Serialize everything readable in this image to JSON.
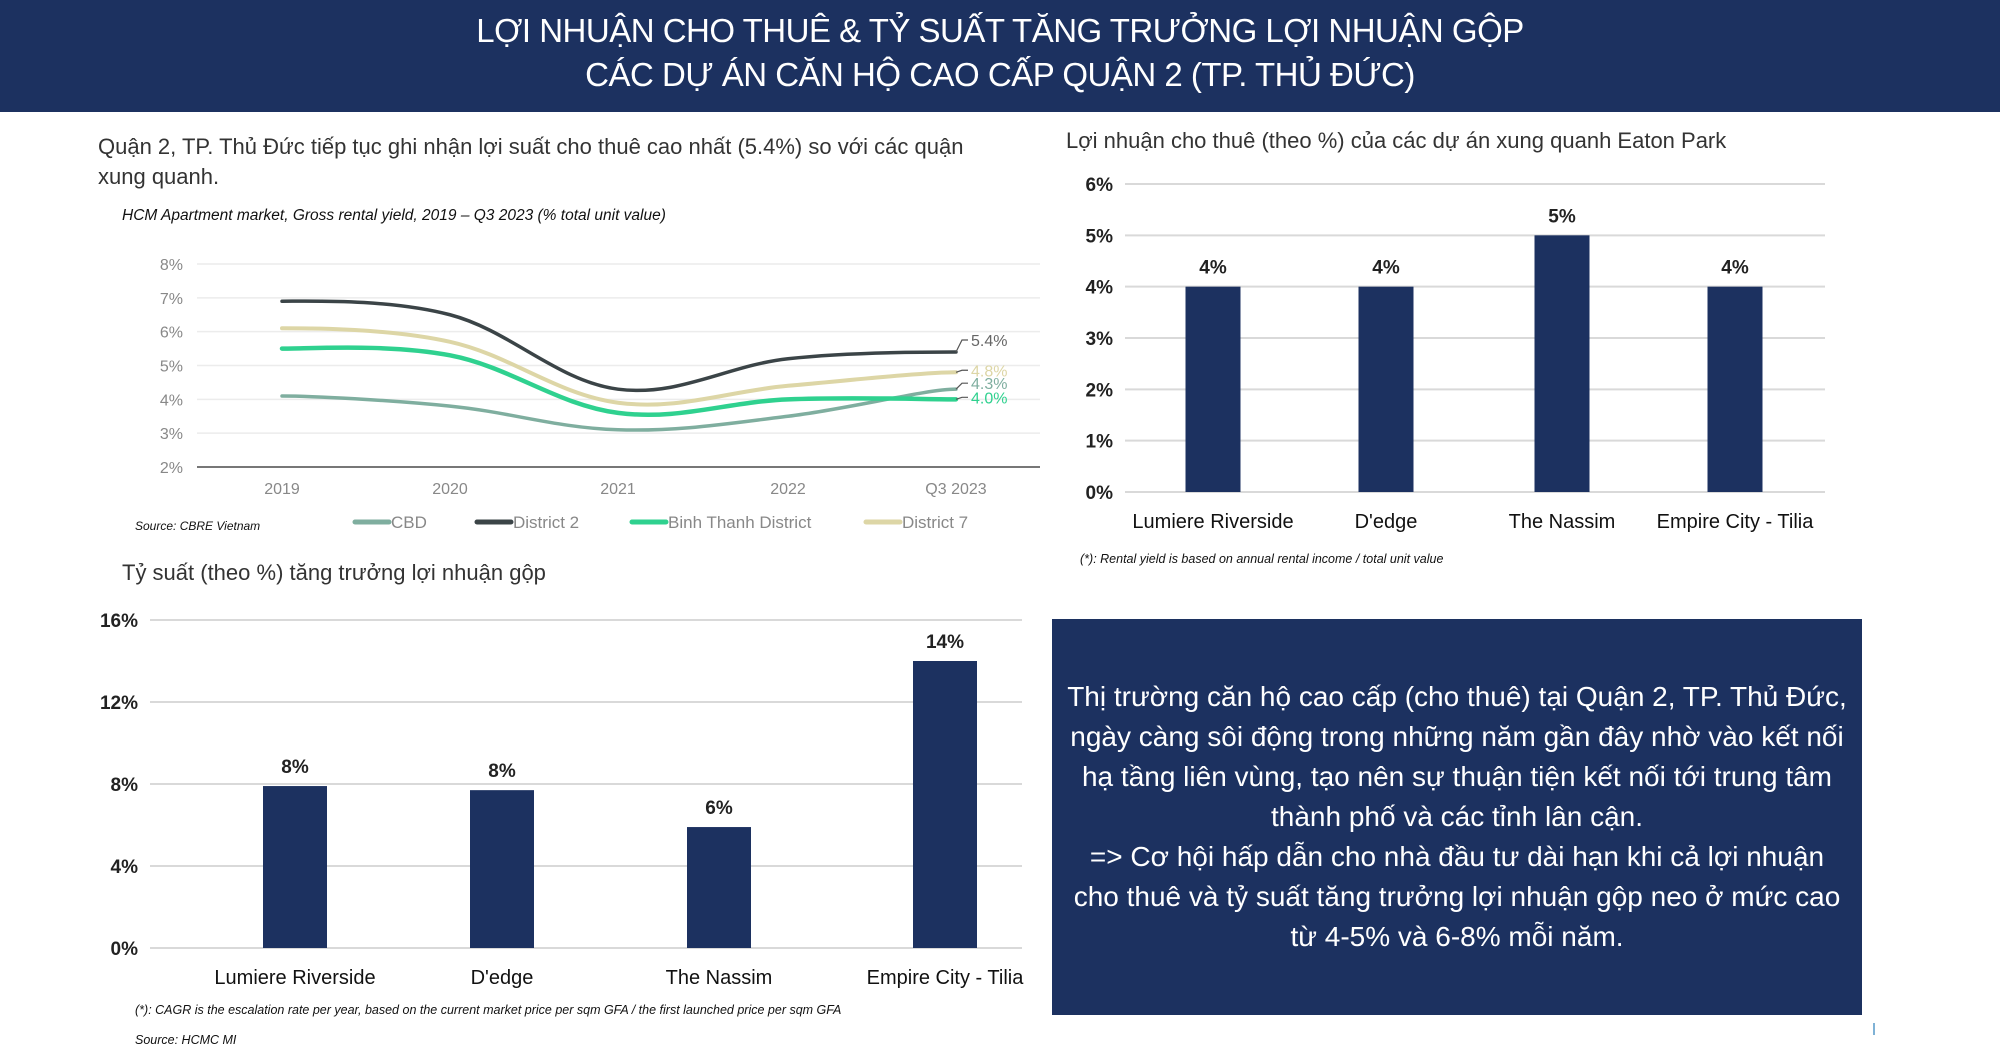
{
  "header": {
    "title_line1": "LỢI NHUẬN CHO THUÊ & TỶ SUẤT TĂNG TRƯỞNG LỢI NHUẬN GỘP",
    "title_line2": "CÁC DỰ ÁN CĂN HỘ CAO CẤP QUẬN 2 (TP. THỦ ĐỨC)"
  },
  "left_top": {
    "lead_text": "Quận 2, TP. Thủ Đức tiếp tục ghi nhận lợi suất cho thuê cao nhất (5.4%) so với các quận xung quanh.",
    "source": "Source: CBRE Vietnam"
  },
  "right_top": {
    "section_title": "Lợi nhuận cho thuê (theo %) của các dự án xung quanh Eaton Park",
    "note": "(*): Rental yield is based on annual rental income / total unit value"
  },
  "left_bottom": {
    "section_title": "Tỷ suất (theo %) tăng trưởng lợi nhuận gộp",
    "note": "(*): CAGR is the escalation rate per year, based on the current market price per sqm GFA / the first launched price per sqm GFA",
    "source": "Source: HCMC MI"
  },
  "callout": {
    "text": "Thị trường căn hộ cao cấp (cho thuê) tại Quận 2, TP. Thủ Đức, ngày càng sôi động trong những năm gần đây nhờ vào kết nối hạ tầng liên vùng, tạo nên sự thuận tiện kết nối tới trung tâm thành phố và các tỉnh lân cận.",
    "text2": "=> Cơ hội hấp dẫn cho nhà đầu tư dài hạn khi cả lợi nhuận cho thuê và tỷ suất tăng trưởng lợi nhuận gộp neo ở mức cao từ 4-5% và 6-8% mỗi năm."
  },
  "colors": {
    "navy": "#1c3160",
    "cbd": "#7fae9f",
    "district2": "#3b4447",
    "binh_thanh": "#2fd18f",
    "district7": "#ddd6a6"
  },
  "chart_data": [
    {
      "type": "line",
      "title": "HCM Apartment market, Gross rental yield, 2019 – Q3 2023 (% total unit value)",
      "xlabel": "",
      "ylabel": "",
      "x": [
        "2019",
        "2020",
        "2021",
        "2022",
        "Q3 2023"
      ],
      "ylim": [
        2,
        8
      ],
      "yticks": [
        "2%",
        "3%",
        "4%",
        "5%",
        "6%",
        "7%",
        "8%"
      ],
      "grid": true,
      "legend": "bottom",
      "series": [
        {
          "name": "CBD",
          "values": [
            4.1,
            3.8,
            3.1,
            3.5,
            4.3
          ],
          "end_label": "4.3%"
        },
        {
          "name": "District 2",
          "values": [
            6.9,
            6.5,
            4.3,
            5.2,
            5.4
          ],
          "end_label": "5.4%"
        },
        {
          "name": "Binh Thanh District",
          "values": [
            5.5,
            5.3,
            3.6,
            4.0,
            4.0
          ],
          "end_label": "4.0%"
        },
        {
          "name": "District 7",
          "values": [
            6.1,
            5.7,
            3.9,
            4.4,
            4.8
          ],
          "end_label": "4.8%"
        }
      ]
    },
    {
      "type": "bar",
      "title": "Lợi nhuận cho thuê (theo %) của các dự án xung quanh Eaton Park",
      "categories": [
        "Lumiere Riverside",
        "D'edge",
        "The Nassim",
        "Empire City - Tilia"
      ],
      "values": [
        4,
        4,
        5,
        4
      ],
      "data_labels": [
        "4%",
        "4%",
        "5%",
        "4%"
      ],
      "ylim": [
        0,
        6
      ],
      "yticks": [
        "0%",
        "1%",
        "2%",
        "3%",
        "4%",
        "5%",
        "6%"
      ],
      "grid": true
    },
    {
      "type": "bar",
      "title": "Tỷ suất (theo %) tăng trưởng lợi nhuận gộp",
      "categories": [
        "Lumiere Riverside",
        "D'edge",
        "The Nassim",
        "Empire City - Tilia"
      ],
      "values": [
        7.9,
        7.7,
        5.9,
        14.0
      ],
      "data_labels": [
        "8%",
        "8%",
        "6%",
        "14%"
      ],
      "ylim": [
        0,
        16
      ],
      "yticks": [
        "0%",
        "4%",
        "8%",
        "12%",
        "16%"
      ],
      "grid": true
    }
  ]
}
